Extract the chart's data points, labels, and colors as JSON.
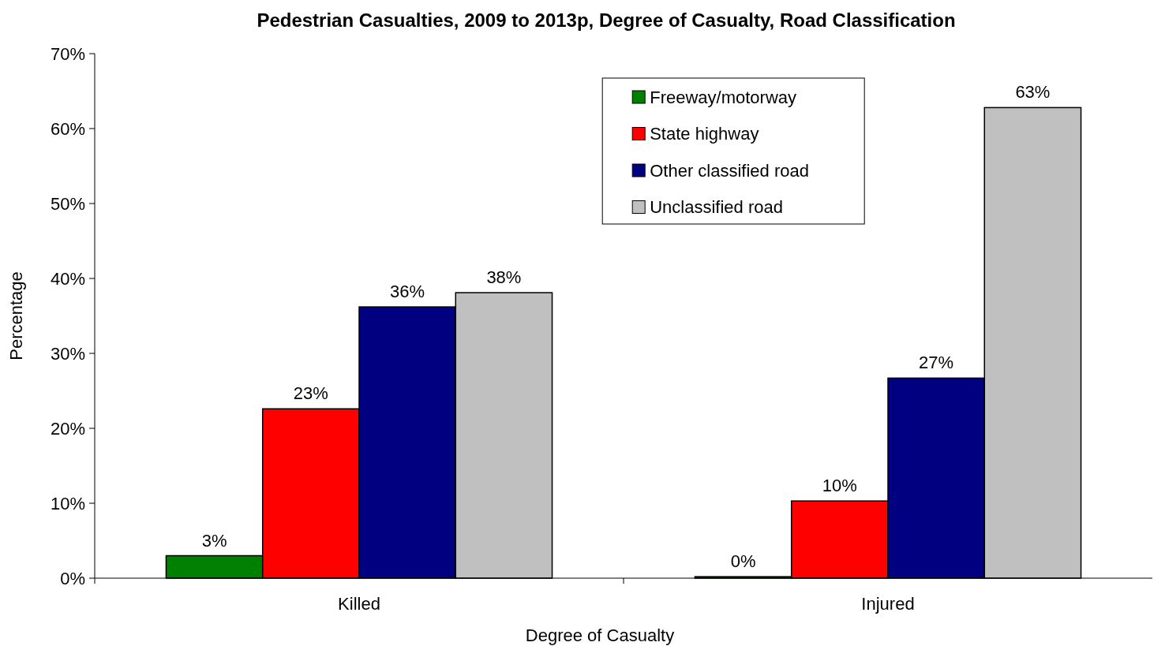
{
  "chart_data": {
    "type": "bar",
    "title": "Pedestrian Casualties, 2009 to 2013p, Degree of Casualty, Road Classification",
    "xlabel": "Degree of Casualty",
    "ylabel": "Percentage",
    "categories": [
      "Killed",
      "Injured"
    ],
    "series": [
      {
        "name": "Freeway/motorway",
        "color": "#008000",
        "values": [
          3.0,
          0.2
        ],
        "value_labels": [
          "3%",
          "0%"
        ]
      },
      {
        "name": "State highway",
        "color": "#ff0000",
        "values": [
          22.6,
          10.3
        ],
        "value_labels": [
          "23%",
          "10%"
        ]
      },
      {
        "name": "Other classified road",
        "color": "#000080",
        "values": [
          36.2,
          26.7
        ],
        "value_labels": [
          "36%",
          "27%"
        ]
      },
      {
        "name": "Unclassified road",
        "color": "#c0c0c0",
        "values": [
          38.1,
          62.8
        ],
        "value_labels": [
          "38%",
          "63%"
        ]
      }
    ],
    "ylim": [
      0,
      70
    ],
    "yticks": [
      {
        "value": 0,
        "label": "0%"
      },
      {
        "value": 10,
        "label": "10%"
      },
      {
        "value": 20,
        "label": "20%"
      },
      {
        "value": 30,
        "label": "30%"
      },
      {
        "value": 40,
        "label": "40%"
      },
      {
        "value": 50,
        "label": "50%"
      },
      {
        "value": 60,
        "label": "60%"
      },
      {
        "value": 70,
        "label": "70%"
      }
    ],
    "legend": "top right",
    "grid": false
  }
}
